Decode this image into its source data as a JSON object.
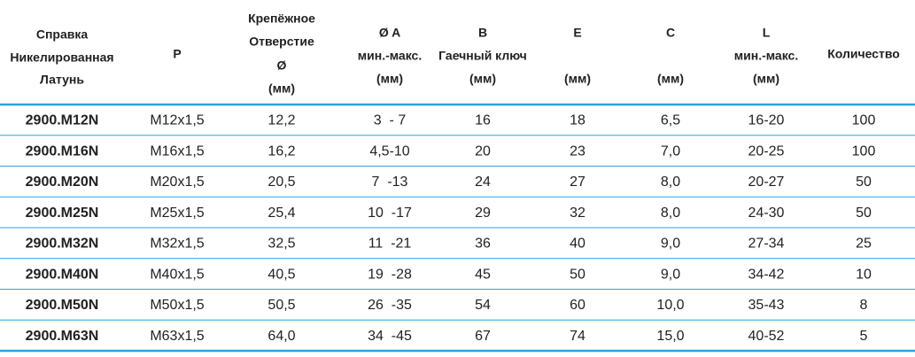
{
  "table": {
    "header": [
      [
        "Справка",
        "Никелированная",
        "Латунь"
      ],
      [
        "P"
      ],
      [
        "Крепёжное",
        "Отверстие",
        "Ø",
        "(мм)"
      ],
      [
        "Ø A",
        "мин.-макс.",
        "(мм)"
      ],
      [
        "B",
        "Гаечный ключ",
        "(мм)"
      ],
      [
        "E",
        "(мм)"
      ],
      [
        "C",
        "(мм)"
      ],
      [
        "L",
        "мин.-макс.",
        "(мм)"
      ],
      [
        "Количество"
      ]
    ],
    "rows": [
      [
        "2900.M12N",
        "M12x1,5",
        "12,2",
        "3  - 7",
        "16",
        "18",
        "6,5",
        "16-20",
        "100"
      ],
      [
        "2900.M16N",
        "M16x1,5",
        "16,2",
        "4,5-10",
        "20",
        "23",
        "7,0",
        "20-25",
        "100"
      ],
      [
        "2900.M20N",
        "M20x1,5",
        "20,5",
        "7  -13",
        "24",
        "27",
        "8,0",
        "20-27",
        "50"
      ],
      [
        "2900.M25N",
        "M25x1,5",
        "25,4",
        "10  -17",
        "29",
        "32",
        "8,0",
        "24-30",
        "50"
      ],
      [
        "2900.M32N",
        "M32x1,5",
        "32,5",
        "11  -21",
        "36",
        "40",
        "9,0",
        "27-34",
        "25"
      ],
      [
        "2900.M40N",
        "M40x1,5",
        "40,5",
        "19  -28",
        "45",
        "50",
        "9,0",
        "34-42",
        "10"
      ],
      [
        "2900.M50N",
        "M50x1,5",
        "50,5",
        "26  -35",
        "54",
        "60",
        "10,0",
        "35-43",
        "8"
      ],
      [
        "2900.M63N",
        "M63x1,5",
        "64,0",
        "34  -45",
        "67",
        "74",
        "15,0",
        "40-52",
        "5"
      ]
    ]
  }
}
